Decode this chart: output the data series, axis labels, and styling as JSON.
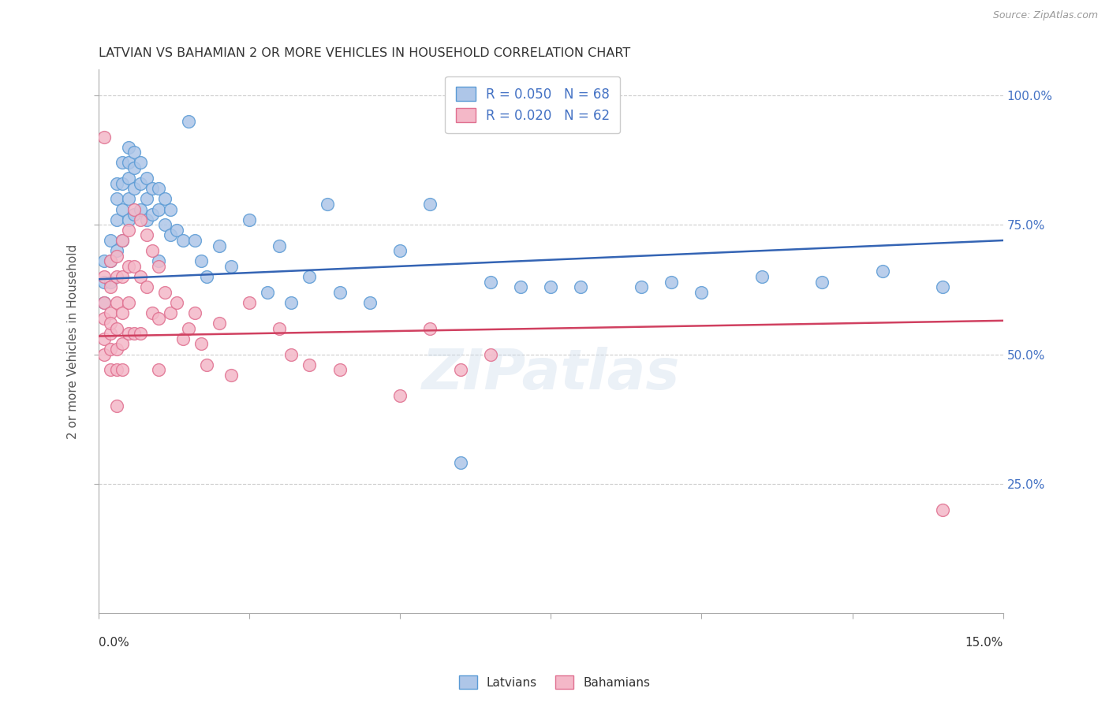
{
  "title": "LATVIAN VS BAHAMIAN 2 OR MORE VEHICLES IN HOUSEHOLD CORRELATION CHART",
  "source": "Source: ZipAtlas.com",
  "ylabel": "2 or more Vehicles in Household",
  "xmin": 0.0,
  "xmax": 0.15,
  "ymin": 0.0,
  "ymax": 1.05,
  "yticks": [
    0.25,
    0.5,
    0.75,
    1.0
  ],
  "ytick_labels": [
    "25.0%",
    "50.0%",
    "75.0%",
    "100.0%"
  ],
  "latvian_color": "#aec6e8",
  "latvian_edge": "#5b9bd5",
  "bahamian_color": "#f4b8c8",
  "bahamian_edge": "#e07090",
  "latvian_line_color": "#3464b4",
  "bahamian_line_color": "#d04060",
  "legend_text_color": "#4472c4",
  "R_latvian": 0.05,
  "N_latvian": 68,
  "R_bahamian": 0.02,
  "N_bahamian": 62,
  "watermark": "ZIPatlas",
  "latvians_x": [
    0.001,
    0.001,
    0.001,
    0.002,
    0.002,
    0.002,
    0.003,
    0.003,
    0.003,
    0.003,
    0.004,
    0.004,
    0.004,
    0.004,
    0.005,
    0.005,
    0.005,
    0.005,
    0.005,
    0.006,
    0.006,
    0.006,
    0.006,
    0.007,
    0.007,
    0.007,
    0.008,
    0.008,
    0.008,
    0.009,
    0.009,
    0.01,
    0.01,
    0.01,
    0.011,
    0.011,
    0.012,
    0.012,
    0.013,
    0.014,
    0.015,
    0.016,
    0.017,
    0.018,
    0.02,
    0.022,
    0.025,
    0.028,
    0.03,
    0.032,
    0.035,
    0.038,
    0.04,
    0.045,
    0.05,
    0.055,
    0.06,
    0.065,
    0.07,
    0.075,
    0.08,
    0.09,
    0.095,
    0.1,
    0.11,
    0.12,
    0.13,
    0.14
  ],
  "latvians_y": [
    0.68,
    0.64,
    0.6,
    0.72,
    0.68,
    0.64,
    0.83,
    0.8,
    0.76,
    0.7,
    0.87,
    0.83,
    0.78,
    0.72,
    0.9,
    0.87,
    0.84,
    0.8,
    0.76,
    0.89,
    0.86,
    0.82,
    0.77,
    0.87,
    0.83,
    0.78,
    0.84,
    0.8,
    0.76,
    0.82,
    0.77,
    0.82,
    0.78,
    0.68,
    0.8,
    0.75,
    0.78,
    0.73,
    0.74,
    0.72,
    0.95,
    0.72,
    0.68,
    0.65,
    0.71,
    0.67,
    0.76,
    0.62,
    0.71,
    0.6,
    0.65,
    0.79,
    0.62,
    0.6,
    0.7,
    0.79,
    0.29,
    0.64,
    0.63,
    0.63,
    0.63,
    0.63,
    0.64,
    0.62,
    0.65,
    0.64,
    0.66,
    0.63
  ],
  "bahamians_x": [
    0.001,
    0.001,
    0.001,
    0.001,
    0.001,
    0.001,
    0.002,
    0.002,
    0.002,
    0.002,
    0.002,
    0.002,
    0.002,
    0.003,
    0.003,
    0.003,
    0.003,
    0.003,
    0.003,
    0.003,
    0.004,
    0.004,
    0.004,
    0.004,
    0.004,
    0.005,
    0.005,
    0.005,
    0.005,
    0.006,
    0.006,
    0.006,
    0.007,
    0.007,
    0.007,
    0.008,
    0.008,
    0.009,
    0.009,
    0.01,
    0.01,
    0.01,
    0.011,
    0.012,
    0.013,
    0.014,
    0.015,
    0.016,
    0.017,
    0.018,
    0.02,
    0.022,
    0.025,
    0.03,
    0.032,
    0.035,
    0.04,
    0.05,
    0.055,
    0.06,
    0.065,
    0.14
  ],
  "bahamians_y": [
    0.92,
    0.65,
    0.6,
    0.57,
    0.53,
    0.5,
    0.68,
    0.63,
    0.58,
    0.54,
    0.51,
    0.47,
    0.56,
    0.69,
    0.65,
    0.6,
    0.55,
    0.51,
    0.47,
    0.4,
    0.72,
    0.65,
    0.58,
    0.52,
    0.47,
    0.74,
    0.67,
    0.6,
    0.54,
    0.78,
    0.67,
    0.54,
    0.76,
    0.65,
    0.54,
    0.73,
    0.63,
    0.7,
    0.58,
    0.67,
    0.57,
    0.47,
    0.62,
    0.58,
    0.6,
    0.53,
    0.55,
    0.58,
    0.52,
    0.48,
    0.56,
    0.46,
    0.6,
    0.55,
    0.5,
    0.48,
    0.47,
    0.42,
    0.55,
    0.47,
    0.5,
    0.2
  ],
  "grid_color": "#cccccc",
  "background_color": "#ffffff",
  "latvian_intercept": 0.645,
  "latvian_slope": 0.5,
  "bahamian_intercept": 0.535,
  "bahamian_slope": 0.2
}
